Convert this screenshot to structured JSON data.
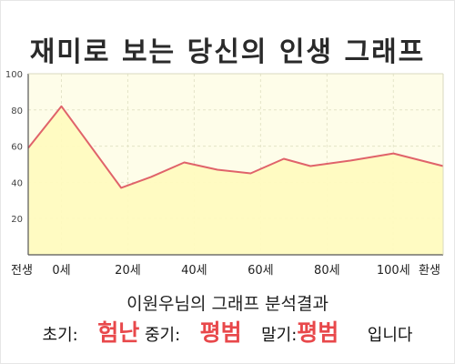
{
  "title": "재미로 보는 당신의 인생 그래프",
  "result_line": "이원우님의 그래프 분석결과",
  "verdict": {
    "early_label": "초기:",
    "early_value": "험난",
    "mid_label": "중기:",
    "mid_value": "평범",
    "late_label": "말기:",
    "late_value": "평범",
    "suffix": "입니다"
  },
  "colors": {
    "line": "#e0636a",
    "area": "#fffbbe",
    "plot_bg": "#fefde9",
    "verdict_accent": "#e8484b"
  },
  "chart_data": {
    "type": "area",
    "x_ticks": [
      {
        "label": "전생",
        "x": -10
      },
      {
        "label": "0세",
        "x": 0
      },
      {
        "label": "20세",
        "x": 20
      },
      {
        "label": "40세",
        "x": 40
      },
      {
        "label": "60세",
        "x": 60
      },
      {
        "label": "80세",
        "x": 80
      },
      {
        "label": "100세",
        "x": 100
      },
      {
        "label": "환생",
        "x": 115
      }
    ],
    "x_range": [
      -10,
      115
    ],
    "ylim": [
      0,
      100
    ],
    "y_ticks": [
      20,
      40,
      60,
      80,
      100
    ],
    "grid": true,
    "series": [
      {
        "x": [
          -10,
          0,
          18,
          27,
          37,
          47,
          57,
          67,
          75,
          87,
          100,
          115
        ],
        "values": [
          59,
          82,
          37,
          43,
          51,
          47,
          45,
          53,
          49,
          52,
          56,
          49
        ]
      }
    ]
  }
}
